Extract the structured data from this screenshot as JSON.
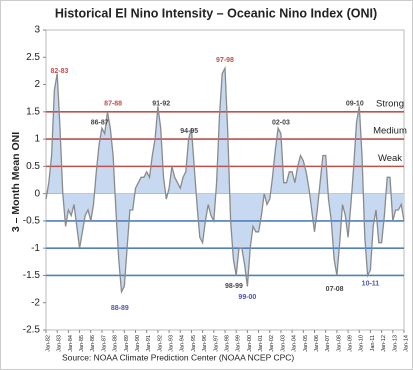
{
  "chart_data": {
    "type": "area",
    "title": "Historical El Nino Intensity – Oceanic Nino Index (ONI)",
    "y_label": "3 – Month Mean ONI",
    "source": "Source: NOAA Climate Prediction Center (NOAA NCEP CPC)",
    "line_color": "#8a8a8a",
    "fill_color": "#c6d9f0",
    "x": [
      1982,
      1982.25,
      1982.5,
      1982.75,
      1983,
      1983.25,
      1983.5,
      1983.75,
      1984,
      1984.25,
      1984.5,
      1984.75,
      1985,
      1985.25,
      1985.5,
      1985.75,
      1986,
      1986.25,
      1986.5,
      1986.75,
      1987,
      1987.25,
      1987.5,
      1987.75,
      1988,
      1988.25,
      1988.5,
      1988.75,
      1989,
      1989.25,
      1989.5,
      1989.75,
      1990,
      1990.25,
      1990.5,
      1990.75,
      1991,
      1991.25,
      1991.5,
      1991.75,
      1992,
      1992.25,
      1992.5,
      1992.75,
      1993,
      1993.25,
      1993.5,
      1993.75,
      1994,
      1994.25,
      1994.5,
      1994.75,
      1995,
      1995.25,
      1995.5,
      1995.75,
      1996,
      1996.25,
      1996.5,
      1996.75,
      1997,
      1997.25,
      1997.5,
      1997.75,
      1998,
      1998.25,
      1998.5,
      1998.75,
      1999,
      1999.25,
      1999.5,
      1999.75,
      2000,
      2000.25,
      2000.5,
      2000.75,
      2001,
      2001.25,
      2001.5,
      2001.75,
      2002,
      2002.25,
      2002.5,
      2002.75,
      2003,
      2003.25,
      2003.5,
      2003.75,
      2004,
      2004.25,
      2004.5,
      2004.75,
      2005,
      2005.25,
      2005.5,
      2005.75,
      2006,
      2006.25,
      2006.5,
      2006.75,
      2007,
      2007.25,
      2007.5,
      2007.75,
      2008,
      2008.25,
      2008.5,
      2008.75,
      2009,
      2009.25,
      2009.5,
      2009.75,
      2010,
      2010.25,
      2010.5,
      2010.75,
      2011,
      2011.25,
      2011.5,
      2011.75,
      2012,
      2012.25,
      2012.5,
      2012.75,
      2013,
      2013.25,
      2013.5,
      2013.75,
      2014
    ],
    "values": [
      -0.1,
      0.2,
      0.7,
      1.9,
      2.2,
      1.2,
      0.0,
      -0.6,
      -0.3,
      -0.4,
      -0.2,
      -0.6,
      -1.0,
      -0.7,
      -0.4,
      -0.3,
      -0.5,
      -0.2,
      0.4,
      0.9,
      1.2,
      1.1,
      1.5,
      1.2,
      0.7,
      -0.3,
      -1.2,
      -1.8,
      -1.7,
      -1.0,
      -0.3,
      -0.3,
      0.1,
      0.2,
      0.3,
      0.3,
      0.4,
      0.3,
      0.7,
      1.0,
      1.6,
      1.2,
      0.3,
      -0.1,
      0.1,
      0.5,
      0.3,
      0.2,
      0.1,
      0.3,
      0.4,
      1.0,
      1.2,
      0.5,
      -0.2,
      -0.8,
      -0.9,
      -0.5,
      -0.2,
      -0.4,
      -0.5,
      0.2,
      1.4,
      2.2,
      2.3,
      1.1,
      -0.5,
      -1.2,
      -1.5,
      -1.0,
      -1.0,
      -1.3,
      -1.7,
      -1.0,
      -0.6,
      -0.7,
      -0.7,
      -0.4,
      0.0,
      -0.2,
      -0.1,
      0.3,
      0.8,
      1.2,
      1.1,
      0.2,
      0.2,
      0.4,
      0.4,
      0.2,
      0.5,
      0.7,
      0.6,
      0.4,
      0.1,
      -0.3,
      -0.7,
      -0.3,
      0.2,
      0.7,
      0.7,
      -0.1,
      -0.5,
      -1.2,
      -1.5,
      -0.9,
      -0.2,
      -0.4,
      -0.8,
      -0.2,
      0.5,
      1.3,
      1.6,
      0.7,
      -0.8,
      -1.5,
      -1.4,
      -0.6,
      -0.3,
      -0.9,
      -0.9,
      -0.4,
      0.3,
      0.3,
      -0.5,
      -0.3,
      -0.3,
      -0.2,
      -0.5
    ],
    "xlim": [
      1982,
      2014
    ],
    "xticks": [
      {
        "value": 1982,
        "label": "Jan-82"
      },
      {
        "value": 1983,
        "label": "Jan-83"
      },
      {
        "value": 1984,
        "label": "Jan-84"
      },
      {
        "value": 1985,
        "label": "Jan-85"
      },
      {
        "value": 1986,
        "label": "Jan-86"
      },
      {
        "value": 1987,
        "label": "Jan-87"
      },
      {
        "value": 1988,
        "label": "Jan-88"
      },
      {
        "value": 1989,
        "label": "Jan-89"
      },
      {
        "value": 1990,
        "label": "Jan-90"
      },
      {
        "value": 1991,
        "label": "Jan-91"
      },
      {
        "value": 1992,
        "label": "Jan-92"
      },
      {
        "value": 1993,
        "label": "Jan-93"
      },
      {
        "value": 1994,
        "label": "Jan-94"
      },
      {
        "value": 1995,
        "label": "Jan-95"
      },
      {
        "value": 1996,
        "label": "Jan-96"
      },
      {
        "value": 1997,
        "label": "Jan-97"
      },
      {
        "value": 1998,
        "label": "Jan-98"
      },
      {
        "value": 1999,
        "label": "Jan-99"
      },
      {
        "value": 2000,
        "label": "Jan-00"
      },
      {
        "value": 2001,
        "label": "Jan-01"
      },
      {
        "value": 2002,
        "label": "Jan-02"
      },
      {
        "value": 2003,
        "label": "Jan-03"
      },
      {
        "value": 2004,
        "label": "Jan-04"
      },
      {
        "value": 2005,
        "label": "Jan-05"
      },
      {
        "value": 2006,
        "label": "Jan-06"
      },
      {
        "value": 2007,
        "label": "Jan-07"
      },
      {
        "value": 2008,
        "label": "Jan-08"
      },
      {
        "value": 2009,
        "label": "Jan-09"
      },
      {
        "value": 2010,
        "label": "Jan-10"
      },
      {
        "value": 2011,
        "label": "Jan-11"
      },
      {
        "value": 2012,
        "label": "Jan-12"
      },
      {
        "value": 2013,
        "label": "Jan-13"
      },
      {
        "value": 2014,
        "label": "Jan-14"
      }
    ],
    "ylim": [
      -2.5,
      3
    ],
    "yticks": [
      -2.5,
      -2,
      -1.5,
      -1,
      -0.5,
      0,
      0.5,
      1,
      1.5,
      2,
      2.5,
      3
    ],
    "thresholds": [
      {
        "value": 1.5,
        "label": "Strong",
        "color": "#c0504d"
      },
      {
        "value": 1,
        "label": "Medium",
        "color": "#c0504d"
      },
      {
        "value": 0.5,
        "label": "Weak",
        "color": "#c0504d"
      },
      {
        "value": -0.5,
        "color": "#4f81bd"
      },
      {
        "value": -1,
        "color": "#4f81bd"
      },
      {
        "value": -1.5,
        "color": "#4f81bd"
      }
    ],
    "annotations": [
      {
        "text": "82-83",
        "x": 1983.2,
        "y": 2.25,
        "color": "#c0504d"
      },
      {
        "text": "87-88",
        "x": 1988.0,
        "y": 1.65,
        "color": "#c0504d"
      },
      {
        "text": "86-87",
        "x": 1986.8,
        "y": 1.3,
        "color": "#444444"
      },
      {
        "text": "91-92",
        "x": 1992.3,
        "y": 1.65,
        "color": "#444444"
      },
      {
        "text": "94-95",
        "x": 1994.8,
        "y": 1.15,
        "color": "#444444"
      },
      {
        "text": "97-98",
        "x": 1998.0,
        "y": 2.45,
        "color": "#c0504d"
      },
      {
        "text": "02-03",
        "x": 2003.0,
        "y": 1.3,
        "color": "#444444"
      },
      {
        "text": "09-10",
        "x": 2009.6,
        "y": 1.65,
        "color": "#444444"
      },
      {
        "text": "88-89",
        "x": 1988.6,
        "y": -2.1,
        "color": "#4f52b5"
      },
      {
        "text": "98-99",
        "x": 1998.8,
        "y": -1.7,
        "color": "#444444"
      },
      {
        "text": "99-00",
        "x": 2000.0,
        "y": -1.9,
        "color": "#4f52b5"
      },
      {
        "text": "07-08",
        "x": 2007.8,
        "y": -1.75,
        "color": "#444444"
      },
      {
        "text": "10-11",
        "x": 2011.0,
        "y": -1.65,
        "color": "#4f52b5"
      }
    ]
  }
}
